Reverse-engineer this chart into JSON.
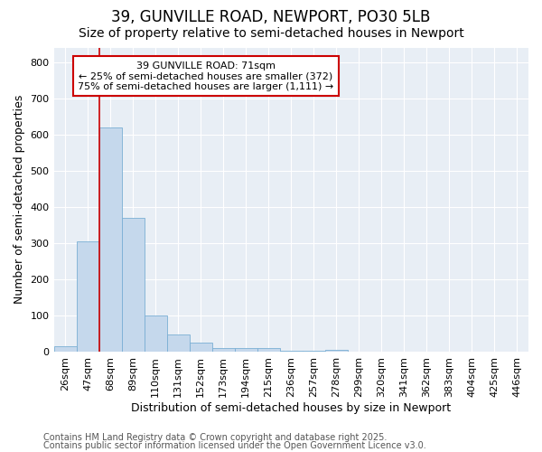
{
  "title1": "39, GUNVILLE ROAD, NEWPORT, PO30 5LB",
  "title2": "Size of property relative to semi-detached houses in Newport",
  "xlabel": "Distribution of semi-detached houses by size in Newport",
  "ylabel": "Number of semi-detached properties",
  "categories": [
    "26sqm",
    "47sqm",
    "68sqm",
    "89sqm",
    "110sqm",
    "131sqm",
    "152sqm",
    "173sqm",
    "194sqm",
    "215sqm",
    "236sqm",
    "257sqm",
    "278sqm",
    "299sqm",
    "320sqm",
    "341sqm",
    "362sqm",
    "383sqm",
    "404sqm",
    "425sqm",
    "446sqm"
  ],
  "values": [
    15,
    305,
    620,
    370,
    100,
    48,
    25,
    10,
    10,
    10,
    3,
    3,
    5,
    0,
    0,
    0,
    0,
    0,
    0,
    0,
    0
  ],
  "bar_color": "#c5d8ec",
  "bar_edge_color": "#7aafd4",
  "vline_color": "#cc0000",
  "vline_x": 1.5,
  "annotation_text": "39 GUNVILLE ROAD: 71sqm\n← 25% of semi-detached houses are smaller (372)\n75% of semi-detached houses are larger (1,111) →",
  "annotation_box_facecolor": "#ffffff",
  "annotation_box_edgecolor": "#cc0000",
  "ylim": [
    0,
    840
  ],
  "yticks": [
    0,
    100,
    200,
    300,
    400,
    500,
    600,
    700,
    800
  ],
  "footer1": "Contains HM Land Registry data © Crown copyright and database right 2025.",
  "footer2": "Contains public sector information licensed under the Open Government Licence v3.0.",
  "fig_bg_color": "#ffffff",
  "plot_bg_color": "#e8eef5",
  "grid_color": "#ffffff",
  "title1_fontsize": 12,
  "title2_fontsize": 10,
  "xlabel_fontsize": 9,
  "ylabel_fontsize": 9,
  "tick_fontsize": 8,
  "annot_fontsize": 8,
  "footer_fontsize": 7
}
